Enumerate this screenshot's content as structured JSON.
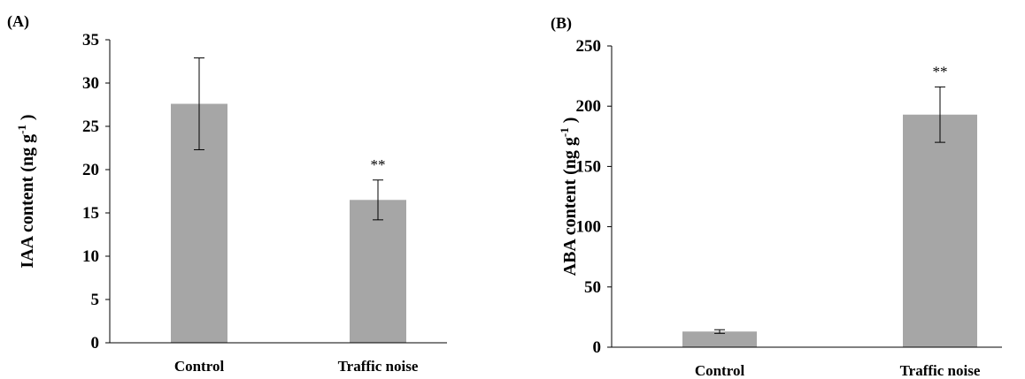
{
  "chart_data": [
    {
      "type": "bar",
      "panel_label": "(A)",
      "categories": [
        "Control",
        "Traffic noise"
      ],
      "values": [
        27.6,
        16.5
      ],
      "errors": [
        5.3,
        2.3
      ],
      "significance": [
        "",
        "**"
      ],
      "ylabel": "IAA content (ng g-1 )",
      "ylim": [
        0,
        35
      ],
      "yticks": [
        "0",
        "5",
        "10",
        "15",
        "20",
        "25",
        "30",
        "35"
      ],
      "grid": false,
      "bar_color": "#a6a6a6"
    },
    {
      "type": "bar",
      "panel_label": "(B)",
      "categories": [
        "Control",
        "Traffic noise"
      ],
      "values": [
        13,
        193
      ],
      "errors": [
        1.5,
        23
      ],
      "significance": [
        "",
        "**"
      ],
      "ylabel": "ABA content (ng g-1 )",
      "ylim": [
        0,
        250
      ],
      "yticks": [
        "0",
        "50",
        "100",
        "150",
        "200",
        "250"
      ],
      "grid": false,
      "bar_color": "#a6a6a6"
    }
  ]
}
